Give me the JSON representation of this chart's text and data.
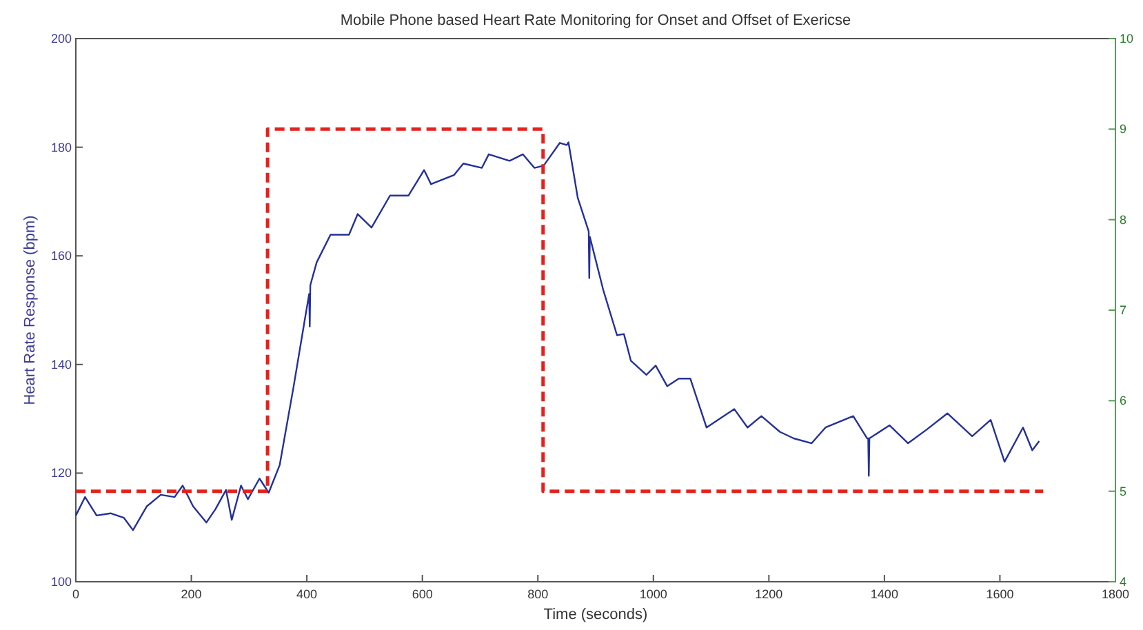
{
  "chart_data": {
    "type": "line",
    "title": "Mobile Phone based Heart Rate Monitoring for Onset and Offset of Exericse",
    "xlabel": "Time (seconds)",
    "ylabel": "Heart Rate Response (bpm)",
    "xlim": [
      0,
      1800
    ],
    "xticks": [
      0,
      200,
      400,
      600,
      800,
      1000,
      1200,
      1400,
      1600,
      1800
    ],
    "ylim": [
      100,
      200
    ],
    "yticks": [
      100,
      120,
      140,
      160,
      180,
      200
    ],
    "y2lim": [
      4,
      10
    ],
    "y2ticks": [
      4,
      5,
      6,
      7,
      8,
      9,
      10
    ],
    "grid": false,
    "series": [
      {
        "color": "#23309a",
        "line_style": "solid",
        "x": [
          0,
          16,
          36,
          60,
          83,
          99,
          123,
          147,
          171,
          185,
          203,
          226,
          242,
          260,
          270,
          286,
          298,
          318,
          334,
          353,
          377,
          397,
          404,
          405,
          406,
          417,
          441,
          473,
          488,
          512,
          544,
          576,
          603,
          615,
          655,
          671,
          703,
          715,
          751,
          774,
          794,
          810,
          838,
          850,
          853,
          869,
          888,
          889,
          890,
          913,
          937,
          949,
          961,
          988,
          1004,
          1024,
          1044,
          1064,
          1092,
          1140,
          1163,
          1187,
          1219,
          1243,
          1274,
          1298,
          1346,
          1370,
          1372,
          1373,
          1374,
          1409,
          1441,
          1473,
          1509,
          1552,
          1584,
          1608,
          1640,
          1656,
          1668
        ],
        "values": [
          112.2,
          115.6,
          112.2,
          112.6,
          111.8,
          109.5,
          113.9,
          116,
          115.6,
          117.7,
          113.9,
          110.9,
          113.4,
          116.9,
          111.4,
          117.7,
          115.2,
          119,
          116.4,
          121.5,
          135.9,
          148.6,
          153,
          147,
          154.6,
          158.8,
          163.9,
          163.9,
          167.7,
          165.2,
          171.1,
          171.1,
          175.8,
          173.2,
          174.9,
          177,
          176.2,
          178.7,
          177.5,
          178.7,
          176.2,
          176.6,
          180.8,
          180.4,
          180.9,
          170.7,
          164.5,
          155.9,
          163.5,
          153.8,
          145.4,
          145.6,
          140.7,
          138.1,
          139.8,
          136,
          137.4,
          137.4,
          128.4,
          131.8,
          128.4,
          130.5,
          127.6,
          126.4,
          125.5,
          128.4,
          130.5,
          126.4,
          126.4,
          119.5,
          126.4,
          128.8,
          125.5,
          128,
          131,
          126.8,
          129.8,
          122.1,
          128.4,
          124.2,
          125.9
        ]
      },
      {
        "type": "step",
        "axis": "y2",
        "color": "#e8201c",
        "line_style": "dashed",
        "x": [
          0,
          332,
          809,
          1675
        ],
        "values": [
          5,
          9,
          5,
          5
        ]
      }
    ]
  }
}
